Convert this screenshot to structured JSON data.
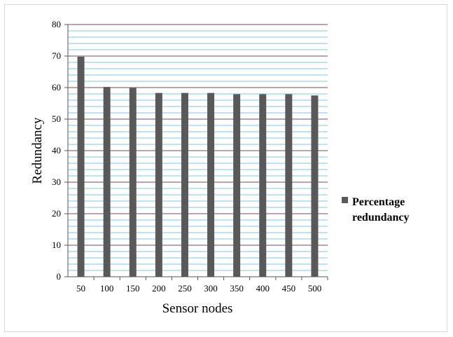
{
  "chart_data": {
    "type": "bar",
    "title": "",
    "xlabel": "Sensor nodes",
    "ylabel": "Redundancy",
    "ylim": [
      0,
      80
    ],
    "yticks": [
      0,
      10,
      20,
      30,
      40,
      50,
      60,
      70,
      80
    ],
    "minor_step": 2,
    "categories": [
      "50",
      "100",
      "150",
      "200",
      "250",
      "300",
      "350",
      "400",
      "450",
      "500"
    ],
    "series": [
      {
        "name": "Percentage redundancy",
        "legend_lines": [
          "Percentage",
          "redundancy"
        ],
        "values": [
          69.8,
          60.2,
          59.9,
          58.3,
          58.3,
          58.3,
          57.9,
          57.9,
          57.9,
          57.5
        ],
        "color": "#595959"
      }
    ],
    "grid": true,
    "major_grid_color": "#8e6f83",
    "minor_grid_color": "#7fc4ef",
    "legend_position": "right"
  }
}
